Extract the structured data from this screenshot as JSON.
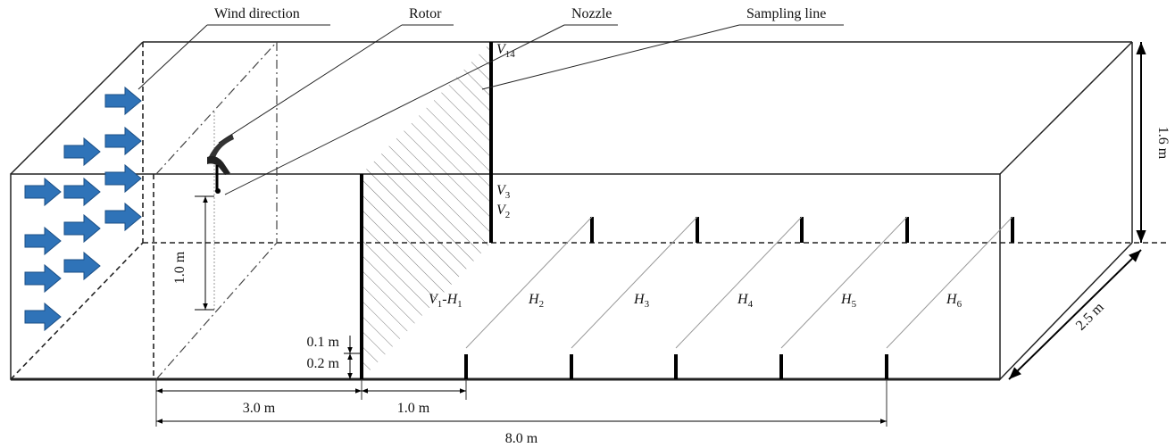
{
  "callouts": [
    {
      "label": "Wind direction"
    },
    {
      "label": "Rotor"
    },
    {
      "label": "Nozzle"
    },
    {
      "label": "Sampling line"
    }
  ],
  "point_labels": [
    [
      {
        "t": "V"
      },
      {
        "s": "14"
      }
    ],
    [
      {
        "t": "V"
      },
      {
        "s": "3"
      }
    ],
    [
      {
        "t": "V"
      },
      {
        "s": "2"
      }
    ],
    [
      {
        "t": "V"
      },
      {
        "s": "1"
      },
      {
        "t": "-H"
      },
      {
        "s": "1"
      }
    ],
    [
      {
        "t": "H"
      },
      {
        "s": "2"
      }
    ],
    [
      {
        "t": "H"
      },
      {
        "s": "3"
      }
    ],
    [
      {
        "t": "H"
      },
      {
        "s": "4"
      }
    ],
    [
      {
        "t": "H"
      },
      {
        "s": "5"
      }
    ],
    [
      {
        "t": "H"
      },
      {
        "s": "6"
      }
    ]
  ],
  "dimensions": {
    "height": "1.6 m",
    "depth": "2.5 m",
    "rotor_height": "1.0 m",
    "offset_small": "0.1 m",
    "offset_low": "0.2 m",
    "rotor_to_plane": "3.0 m",
    "spacing": "1.0 m",
    "total": "8.0 m"
  }
}
